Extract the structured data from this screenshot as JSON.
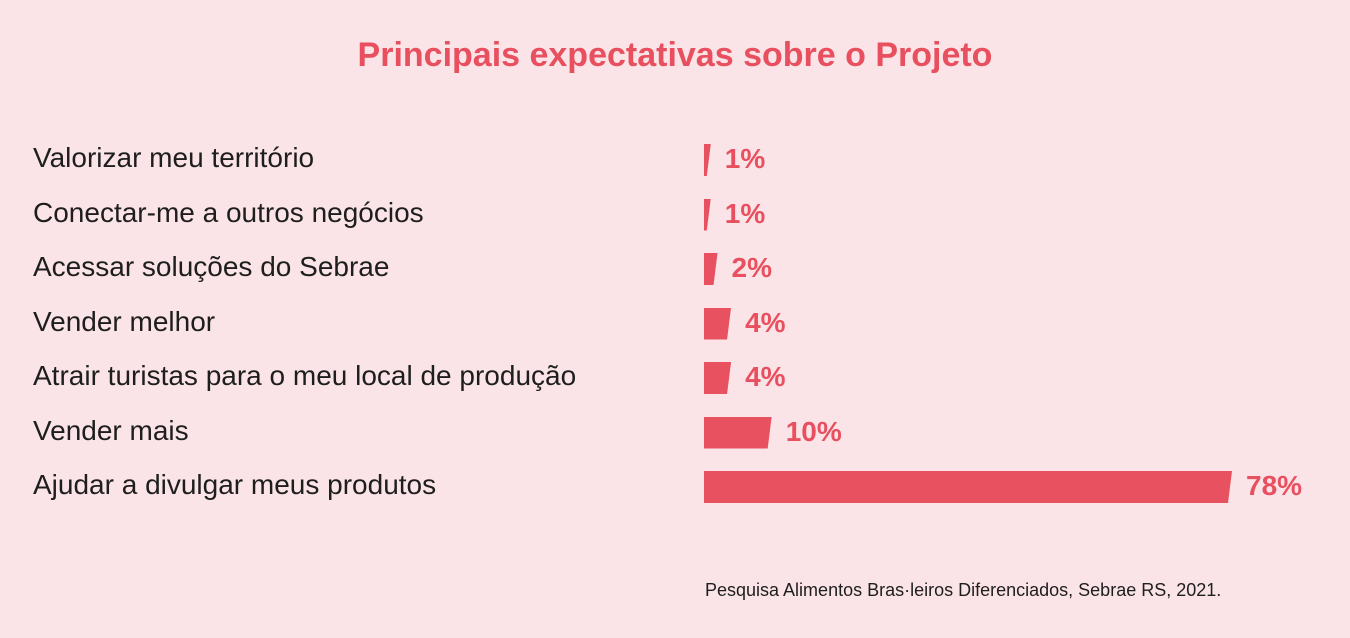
{
  "chart_data": {
    "type": "bar",
    "orientation": "horizontal",
    "title": "Principais expectativas sobre o Projeto",
    "categories": [
      "Valorizar meu território",
      "Conectar-me a outros negócios",
      "Acessar soluções do Sebrae",
      "Vender melhor",
      "Atrair turistas para o meu local de produção",
      "Vender mais",
      "Ajudar a divulgar meus produtos"
    ],
    "values": [
      1,
      1,
      2,
      4,
      4,
      10,
      78
    ],
    "value_labels": [
      "1%",
      "1%",
      "2%",
      "4%",
      "4%",
      "10%",
      "78%"
    ],
    "xlabel": "",
    "ylabel": "",
    "xlim": [
      0,
      78
    ],
    "grid": false,
    "color": "#e8515f"
  },
  "source": "Pesquisa Alimentos Bras·leiros Diferenciados, Sebrae RS, 2021."
}
